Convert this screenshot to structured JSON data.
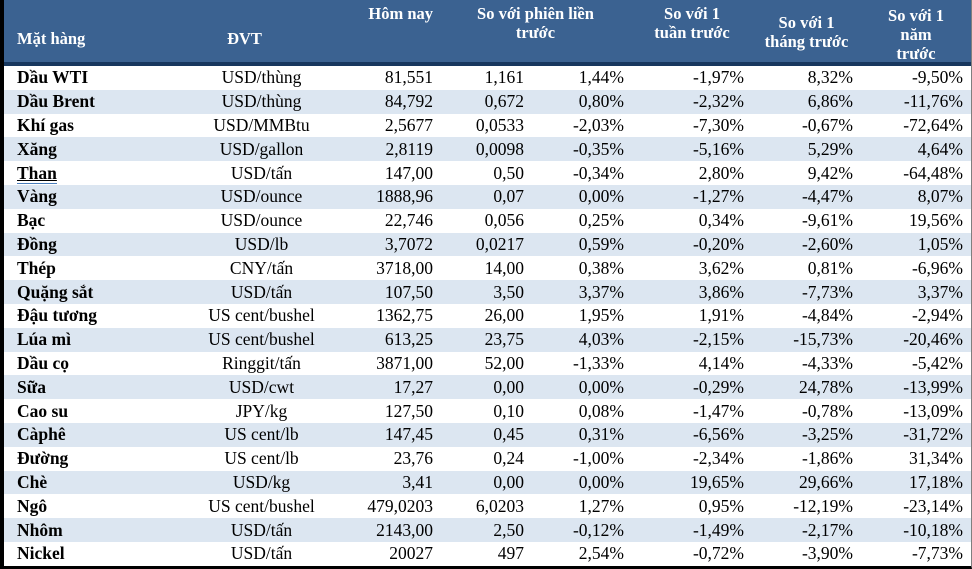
{
  "table": {
    "headers": {
      "commodity": "Mặt hàng",
      "unit": "ĐVT",
      "today": "Hôm nay",
      "vs_prev_session": "So với phiên liền trước",
      "vs_1_week": "So với 1 tuần trước",
      "vs_1_month": "So với 1 tháng trước",
      "vs_1_year": "So với 1 năm trước"
    },
    "rows": [
      {
        "name": "Dầu WTI",
        "unit": "USD/thùng",
        "today": "81,551",
        "change": "1,161",
        "change_pct": "1,44%",
        "week_pct": "-1,97%",
        "month_pct": "8,32%",
        "year_pct": "-9,50%",
        "underlined": false
      },
      {
        "name": "Dầu Brent",
        "unit": "USD/thùng",
        "today": "84,792",
        "change": "0,672",
        "change_pct": "0,80%",
        "week_pct": "-2,32%",
        "month_pct": "6,86%",
        "year_pct": "-11,76%",
        "underlined": false
      },
      {
        "name": "Khí gas",
        "unit": "USD/MMBtu",
        "today": "2,5677",
        "change": "0,0533",
        "change_pct": "-2,03%",
        "week_pct": "-7,30%",
        "month_pct": "-0,67%",
        "year_pct": "-72,64%",
        "underlined": false
      },
      {
        "name": "Xăng",
        "unit": "USD/gallon",
        "today": "2,8119",
        "change": "0,0098",
        "change_pct": "-0,35%",
        "week_pct": "-5,16%",
        "month_pct": "5,29%",
        "year_pct": "4,64%",
        "underlined": false
      },
      {
        "name": "Than",
        "unit": "USD/tấn",
        "today": "147,00",
        "change": "0,50",
        "change_pct": "-0,34%",
        "week_pct": "2,80%",
        "month_pct": "9,42%",
        "year_pct": "-64,48%",
        "underlined": true
      },
      {
        "name": "Vàng",
        "unit": "USD/ounce",
        "today": "1888,96",
        "change": "0,07",
        "change_pct": "0,00%",
        "week_pct": "-1,27%",
        "month_pct": "-4,47%",
        "year_pct": "8,07%",
        "underlined": false
      },
      {
        "name": "Bạc",
        "unit": "USD/ounce",
        "today": "22,746",
        "change": "0,056",
        "change_pct": "0,25%",
        "week_pct": "0,34%",
        "month_pct": "-9,61%",
        "year_pct": "19,56%",
        "underlined": false
      },
      {
        "name": "Đồng",
        "unit": "USD/lb",
        "today": "3,7072",
        "change": "0,0217",
        "change_pct": "0,59%",
        "week_pct": "-0,20%",
        "month_pct": "-2,60%",
        "year_pct": "1,05%",
        "underlined": false
      },
      {
        "name": "Thép",
        "unit": "CNY/tấn",
        "today": "3718,00",
        "change": "14,00",
        "change_pct": "0,38%",
        "week_pct": "3,62%",
        "month_pct": "0,81%",
        "year_pct": "-6,96%",
        "underlined": false
      },
      {
        "name": "Quặng sắt",
        "unit": "USD/tấn",
        "today": "107,50",
        "change": "3,50",
        "change_pct": "3,37%",
        "week_pct": "3,86%",
        "month_pct": "-7,73%",
        "year_pct": "3,37%",
        "underlined": false
      },
      {
        "name": "Đậu tương",
        "unit": "US cent/bushel",
        "today": "1362,75",
        "change": "26,00",
        "change_pct": "1,95%",
        "week_pct": "1,91%",
        "month_pct": "-4,84%",
        "year_pct": "-2,94%",
        "underlined": false
      },
      {
        "name": "Lúa mì",
        "unit": "US cent/bushel",
        "today": "613,25",
        "change": "23,75",
        "change_pct": "4,03%",
        "week_pct": "-2,15%",
        "month_pct": "-15,73%",
        "year_pct": "-20,46%",
        "underlined": false
      },
      {
        "name": "Dầu cọ",
        "unit": "Ringgit/tấn",
        "today": "3871,00",
        "change": "52,00",
        "change_pct": "-1,33%",
        "week_pct": "4,14%",
        "month_pct": "-4,33%",
        "year_pct": "-5,42%",
        "underlined": false
      },
      {
        "name": "Sữa",
        "unit": "USD/cwt",
        "today": "17,27",
        "change": "0,00",
        "change_pct": "0,00%",
        "week_pct": "-0,29%",
        "month_pct": "24,78%",
        "year_pct": "-13,99%",
        "underlined": false
      },
      {
        "name": "Cao su",
        "unit": "JPY/kg",
        "today": "127,50",
        "change": "0,10",
        "change_pct": "0,08%",
        "week_pct": "-1,47%",
        "month_pct": "-0,78%",
        "year_pct": "-13,09%",
        "underlined": false
      },
      {
        "name": "Càphê",
        "unit": "US cent/lb",
        "today": "147,45",
        "change": "0,45",
        "change_pct": "0,31%",
        "week_pct": "-6,56%",
        "month_pct": "-3,25%",
        "year_pct": "-31,72%",
        "underlined": false
      },
      {
        "name": "Đường",
        "unit": "US cent/lb",
        "today": "23,76",
        "change": "0,24",
        "change_pct": "-1,00%",
        "week_pct": "-2,34%",
        "month_pct": "-1,86%",
        "year_pct": "31,34%",
        "underlined": false
      },
      {
        "name": "Chè",
        "unit": "USD/kg",
        "today": "3,41",
        "change": "0,00",
        "change_pct": "0,00%",
        "week_pct": "19,65%",
        "month_pct": "29,66%",
        "year_pct": "17,18%",
        "underlined": false
      },
      {
        "name": "Ngô",
        "unit": "US cent/bushel",
        "today": "479,0203",
        "change": "6,0203",
        "change_pct": "1,27%",
        "week_pct": "0,95%",
        "month_pct": "-12,19%",
        "year_pct": "-23,14%",
        "underlined": false
      },
      {
        "name": "Nhôm",
        "unit": "USD/tấn",
        "today": "2143,00",
        "change": "2,50",
        "change_pct": "-0,12%",
        "week_pct": "-1,49%",
        "month_pct": "-2,17%",
        "year_pct": "-10,18%",
        "underlined": false
      },
      {
        "name": "Nickel",
        "unit": "USD/tấn",
        "today": "20027",
        "change": "497",
        "change_pct": "2,54%",
        "week_pct": "-0,72%",
        "month_pct": "-3,90%",
        "year_pct": "-7,73%",
        "underlined": false
      }
    ]
  },
  "colors": {
    "header_bg": "#3b6291",
    "header_text": "#ffffff",
    "header_border": "#17375e",
    "stripe_bg": "#dce6f1",
    "outer_border": "#000000",
    "link_underline": "#4a7ebb",
    "body_text": "#000000"
  }
}
